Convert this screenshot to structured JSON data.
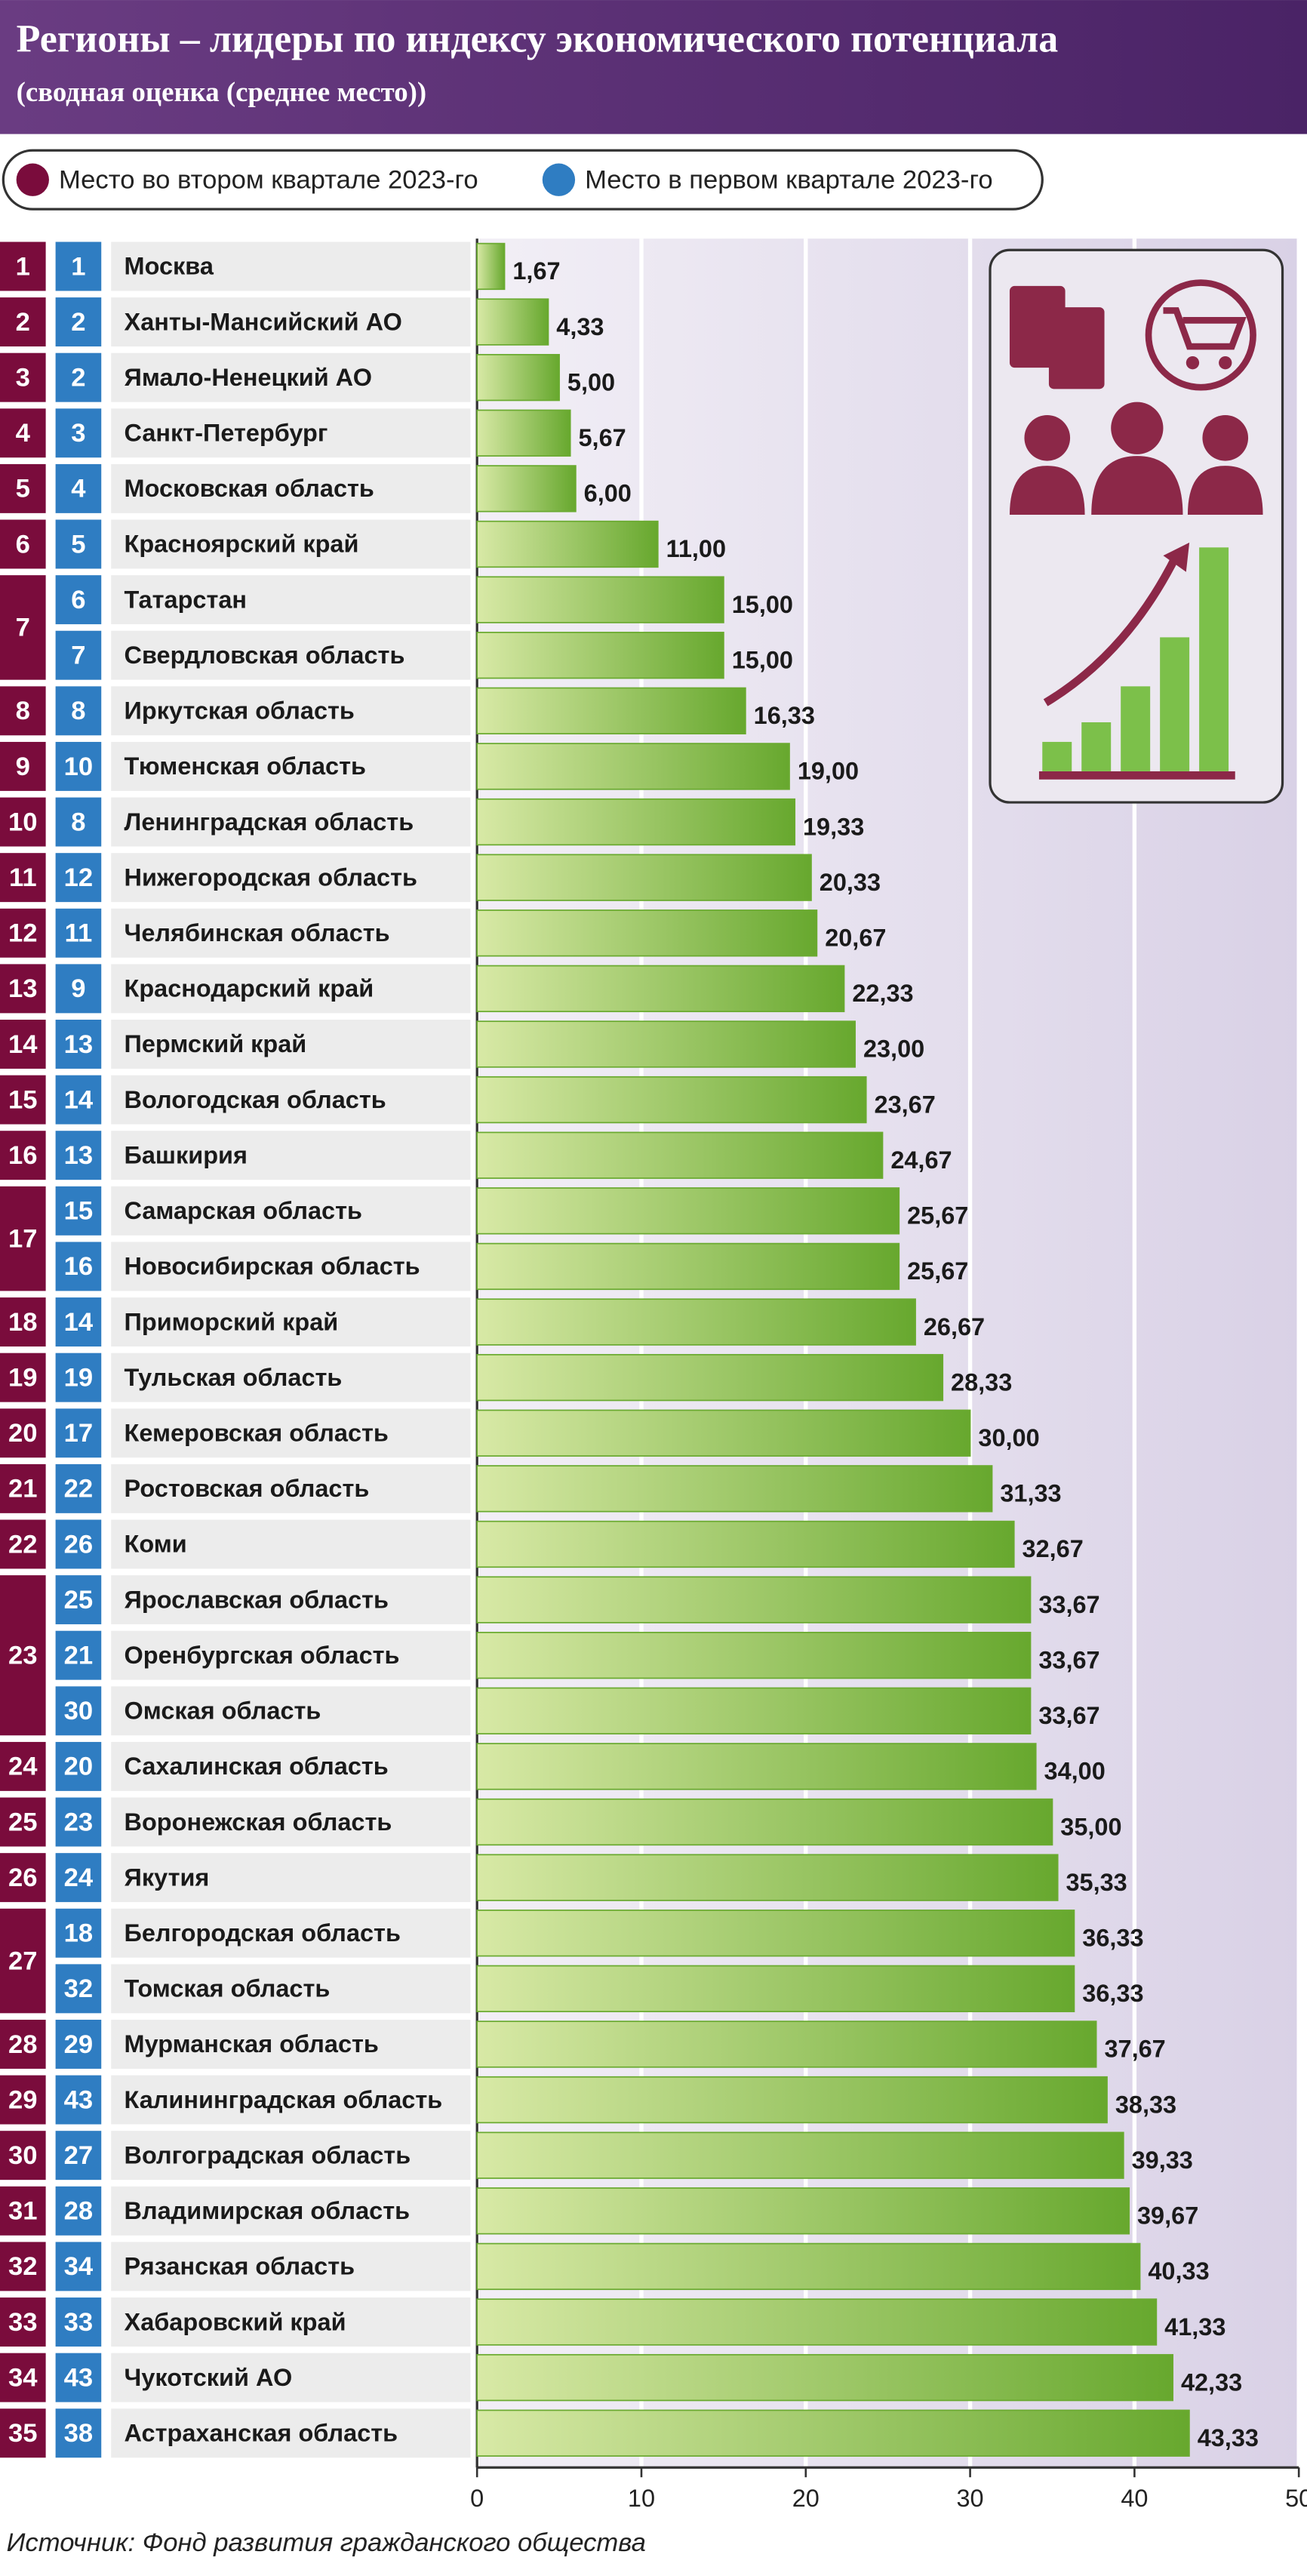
{
  "chart_data": {
    "type": "bar",
    "orientation": "horizontal",
    "title": "Регионы – лидеры по индексу экономического потенциала",
    "subtitle": "(сводная оценка (среднее место))",
    "legend": [
      {
        "name": "Место во втором квартале 2023-го",
        "color": "#7a0c3c"
      },
      {
        "name": "Место в первом квартале 2023-го",
        "color": "#2f7dc2"
      }
    ],
    "categories": [
      "Москва",
      "Ханты-Мансийский АО",
      "Ямало-Ненецкий АО",
      "Санкт-Петербург",
      "Московская область",
      "Красноярский край",
      "Татарстан",
      "Свердловская область",
      "Иркутская область",
      "Тюменская область",
      "Ленинградская область",
      "Нижегородская область",
      "Челябинская область",
      "Краснодарский край",
      "Пермский край",
      "Вологодская область",
      "Башкирия",
      "Самарская область",
      "Новосибирская область",
      "Приморский край",
      "Тульская область",
      "Кемеровская область",
      "Ростовская область",
      "Коми",
      "Ярославская область",
      "Оренбургская область",
      "Омская область",
      "Сахалинская область",
      "Воронежская область",
      "Якутия",
      "Белгородская область",
      "Томская область",
      "Мурманская область",
      "Калининградская область",
      "Волгоградская область",
      "Владимирская область",
      "Рязанская область",
      "Хабаровский край",
      "Чукотский АО",
      "Астраханская область"
    ],
    "rank_q2": [
      1,
      2,
      3,
      4,
      5,
      6,
      7,
      null,
      8,
      9,
      10,
      11,
      12,
      13,
      14,
      15,
      16,
      17,
      null,
      18,
      19,
      20,
      21,
      22,
      23,
      null,
      null,
      24,
      25,
      26,
      27,
      null,
      28,
      29,
      30,
      31,
      32,
      33,
      34,
      35
    ],
    "rank_q1": [
      1,
      2,
      2,
      3,
      4,
      5,
      6,
      7,
      8,
      10,
      8,
      12,
      11,
      9,
      13,
      14,
      13,
      15,
      16,
      14,
      19,
      17,
      22,
      26,
      25,
      21,
      30,
      20,
      23,
      24,
      18,
      32,
      29,
      43,
      27,
      28,
      34,
      33,
      43,
      38
    ],
    "values": [
      1.67,
      4.33,
      5,
      5.67,
      6,
      11,
      15,
      15,
      16.33,
      19,
      19.33,
      20.33,
      20.67,
      22.33,
      23,
      23.67,
      24.67,
      25.67,
      25.67,
      26.67,
      28.33,
      30,
      31.33,
      32.67,
      33.67,
      33.67,
      33.67,
      34,
      35,
      35.33,
      36.33,
      36.33,
      37.67,
      38.33,
      39.33,
      39.67,
      40.33,
      41.33,
      42.33,
      43.33
    ],
    "value_labels": [
      "1,67",
      "4,33",
      "5,00",
      "5,67",
      "6,00",
      "11,00",
      "15,00",
      "15,00",
      "16,33",
      "19,00",
      "19,33",
      "20,33",
      "20,67",
      "22,33",
      "23,00",
      "23,67",
      "24,67",
      "25,67",
      "25,67",
      "26,67",
      "28,33",
      "30,00",
      "31,33",
      "32,67",
      "33,67",
      "33,67",
      "33,67",
      "34,00",
      "35,00",
      "35,33",
      "36,33",
      "36,33",
      "37,67",
      "38,33",
      "39,33",
      "39,67",
      "40,33",
      "41,33",
      "42,33",
      "43,33"
    ],
    "color": "#6aaa30",
    "xlim": [
      0,
      50
    ],
    "xticks": [
      0,
      10,
      20,
      30,
      40,
      50
    ],
    "grid": true,
    "source": "Источник: Фонд развития гражданского общества"
  }
}
